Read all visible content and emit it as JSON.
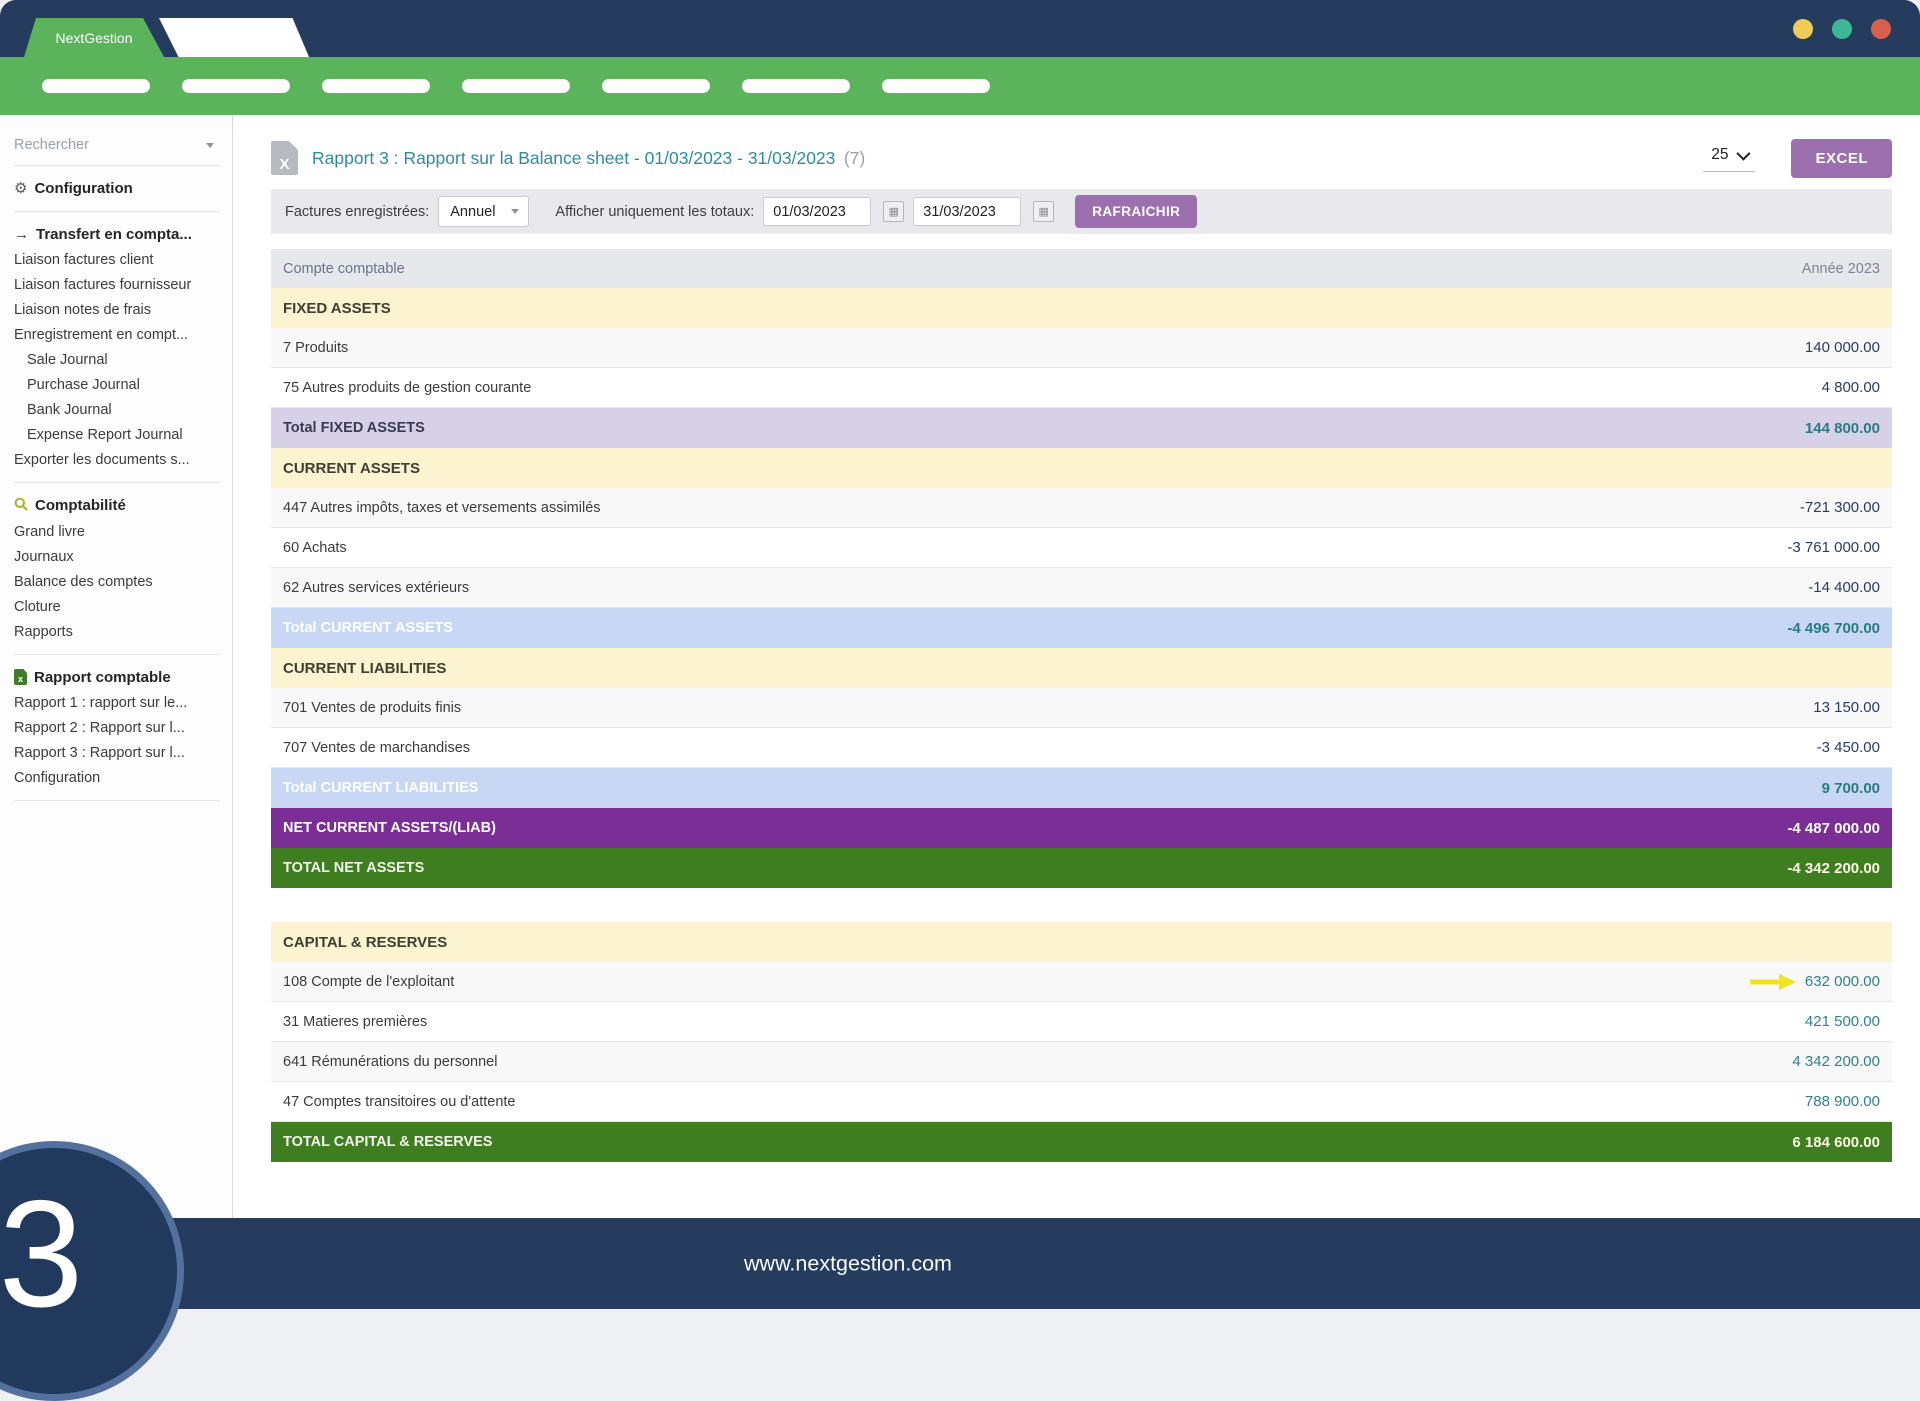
{
  "window": {
    "brand": "NextGestion",
    "traffic_lights": [
      "#f0cb57",
      "#3eb796",
      "#d95f4d"
    ]
  },
  "topnav": {
    "pill_count": 7
  },
  "sidebar": {
    "search_placeholder": "Rechercher",
    "groups": [
      {
        "items": [
          {
            "label": "Configuration",
            "icon": "gears",
            "bold": true
          }
        ]
      },
      {
        "items": [
          {
            "label": "Transfert en compta...",
            "icon": "arrow-right",
            "bold": true
          },
          {
            "label": "Liaison factures client"
          },
          {
            "label": "Liaison factures fournisseur"
          },
          {
            "label": "Liaison notes de frais"
          },
          {
            "label": "Enregistrement en compt..."
          },
          {
            "label": "Sale Journal",
            "indent": true
          },
          {
            "label": "Purchase Journal",
            "indent": true
          },
          {
            "label": "Bank Journal",
            "indent": true
          },
          {
            "label": "Expense Report Journal",
            "indent": true
          },
          {
            "label": "Exporter les documents s..."
          }
        ]
      },
      {
        "items": [
          {
            "label": "Comptabilité",
            "icon": "search",
            "bold": true
          },
          {
            "label": "Grand livre"
          },
          {
            "label": "Journaux"
          },
          {
            "label": "Balance des comptes"
          },
          {
            "label": "Cloture"
          },
          {
            "label": "Rapports"
          }
        ]
      },
      {
        "items": [
          {
            "label": "Rapport comptable",
            "icon": "excel",
            "bold": true
          },
          {
            "label": "Rapport 1 : rapport sur le..."
          },
          {
            "label": "Rapport 2 : Rapport sur l..."
          },
          {
            "label": "Rapport 3 : Rapport sur l..."
          },
          {
            "label": "Configuration"
          }
        ]
      }
    ]
  },
  "report": {
    "title": "Rapport 3 : Rapport sur la Balance sheet - 01/03/2023 - 31/03/2023",
    "count": "(7)",
    "page_size": "25",
    "excel_button": "EXCEL"
  },
  "filters": {
    "invoices_label": "Factures enregistrées:",
    "period_value": "Annuel",
    "totals_label": "Afficher uniquement les totaux:",
    "date_from": "01/03/2023",
    "date_to": "31/03/2023",
    "refresh_button": "RAFRAICHIR"
  },
  "table": {
    "col_account": "Compte comptable",
    "col_year": "Année 2023",
    "rows": [
      {
        "type": "section",
        "label": "FIXED ASSETS"
      },
      {
        "type": "row",
        "shade": "light",
        "label": "7 Produits",
        "value": "140 000.00"
      },
      {
        "type": "row",
        "shade": "white",
        "label": "75 Autres produits de gestion courante",
        "value": "4 800.00"
      },
      {
        "type": "total-lavender",
        "label": "Total FIXED ASSETS",
        "value": "144 800.00"
      },
      {
        "type": "section",
        "label": "CURRENT ASSETS"
      },
      {
        "type": "row",
        "shade": "light",
        "label": "447 Autres impôts, taxes et versements assimilés",
        "value": "-721 300.00"
      },
      {
        "type": "row",
        "shade": "white",
        "label": "60 Achats",
        "value": "-3 761 000.00"
      },
      {
        "type": "row",
        "shade": "light",
        "label": "62 Autres services extérieurs",
        "value": "-14 400.00"
      },
      {
        "type": "total-blue",
        "label": "Total CURRENT ASSETS",
        "value": "-4 496 700.00"
      },
      {
        "type": "section",
        "label": "CURRENT LIABILITIES"
      },
      {
        "type": "row",
        "shade": "light",
        "label": "701 Ventes de produits finis",
        "value": "13 150.00"
      },
      {
        "type": "row",
        "shade": "white",
        "label": "707 Ventes de marchandises",
        "value": "-3 450.00"
      },
      {
        "type": "total-blue",
        "label": "Total CURRENT LIABILITIES",
        "value": "9 700.00"
      },
      {
        "type": "total-purple",
        "label": "NET CURRENT ASSETS/(LIAB)",
        "value": "-4 487 000.00"
      },
      {
        "type": "total-green",
        "label": "TOTAL NET ASSETS",
        "value": "-4 342 200.00"
      },
      {
        "type": "gap"
      },
      {
        "type": "section",
        "label": "CAPITAL & RESERVES"
      },
      {
        "type": "row",
        "shade": "light",
        "label": "108 Compte de l'exploitant",
        "value": "632 000.00",
        "teal": true,
        "arrow": true
      },
      {
        "type": "row",
        "shade": "white",
        "label": "31 Matieres premières",
        "value": "421 500.00",
        "teal": true
      },
      {
        "type": "row",
        "shade": "light",
        "label": "641 Rémunérations du personnel",
        "value": "4 342 200.00",
        "teal": true
      },
      {
        "type": "row",
        "shade": "white",
        "label": "47 Comptes transitoires ou d'attente",
        "value": "788 900.00",
        "teal": true
      },
      {
        "type": "total-green",
        "label": "TOTAL CAPITAL & RESERVES",
        "value": "6 184 600.00"
      }
    ]
  },
  "footer": {
    "url": "www.nextgestion.com",
    "badge": "3"
  },
  "colors": {
    "navy": "#253c5f",
    "brand_green": "#5bb35c",
    "accent_purple": "#9c6fae",
    "title_teal": "#2d8d99",
    "section_bg": "#fcf3d1",
    "total_lavender": "#d7d1e7",
    "total_blue": "#c8d8f4",
    "total_purple": "#7b2e96",
    "total_green": "#3f7d21",
    "value_navy": "#2b3a66",
    "value_teal": "#2f808b",
    "arrow_yellow": "#efe41e"
  }
}
